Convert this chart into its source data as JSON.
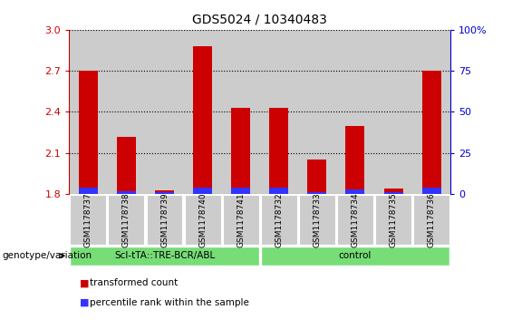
{
  "title": "GDS5024 / 10340483",
  "samples": [
    "GSM1178737",
    "GSM1178738",
    "GSM1178739",
    "GSM1178740",
    "GSM1178741",
    "GSM1178732",
    "GSM1178733",
    "GSM1178734",
    "GSM1178735",
    "GSM1178736"
  ],
  "transformed_count": [
    2.7,
    2.22,
    1.83,
    2.88,
    2.43,
    2.43,
    2.05,
    2.3,
    1.84,
    2.7
  ],
  "blue_pct": [
    4,
    2,
    1,
    4,
    4,
    4,
    1,
    3,
    1,
    4
  ],
  "ylim_left": [
    1.8,
    3.0
  ],
  "ylim_right": [
    0,
    100
  ],
  "yticks_left": [
    1.8,
    2.1,
    2.4,
    2.7,
    3.0
  ],
  "yticks_right": [
    0,
    25,
    50,
    75,
    100
  ],
  "bar_color_red": "#cc0000",
  "bar_color_blue": "#3333ff",
  "bar_width": 0.5,
  "groups": [
    {
      "label": "Scl-tTA::TRE-BCR/ABL",
      "indices": [
        0,
        1,
        2,
        3,
        4
      ],
      "color": "#77dd77"
    },
    {
      "label": "control",
      "indices": [
        5,
        6,
        7,
        8,
        9
      ],
      "color": "#77dd77"
    }
  ],
  "genotype_label": "genotype/variation",
  "legend_items": [
    {
      "label": "transformed count",
      "color": "#cc0000"
    },
    {
      "label": "percentile rank within the sample",
      "color": "#3333ff"
    }
  ],
  "col_bg_color": "#cccccc",
  "tick_color_left": "#cc0000",
  "tick_color_right": "#0000cc",
  "title_fontsize": 10,
  "tick_fontsize": 8,
  "label_fontsize": 7.5
}
